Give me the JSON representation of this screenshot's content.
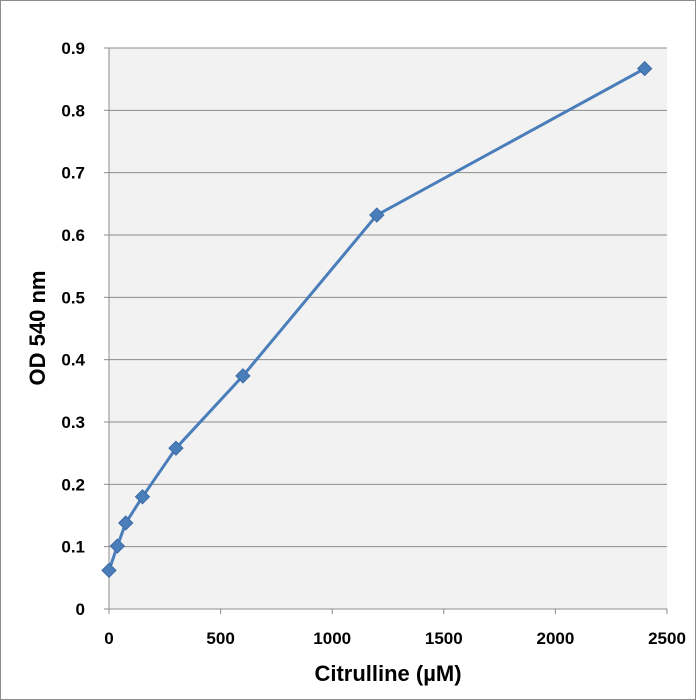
{
  "chart_data": {
    "type": "line",
    "title": "",
    "xlabel": "Citrulline (µM)",
    "ylabel": "OD 540 nm",
    "xlim": [
      0,
      2500
    ],
    "ylim": [
      0,
      0.9
    ],
    "x_ticks": [
      "0",
      "500",
      "1000",
      "1500",
      "2000",
      "2500"
    ],
    "y_ticks": [
      "0",
      "0.1",
      "0.2",
      "0.3",
      "0.4",
      "0.5",
      "0.6",
      "0.7",
      "0.8",
      "0.9"
    ],
    "grid": "horizontal",
    "legend": "none",
    "series": [
      {
        "marker": "diamond",
        "color": "#4a7ebb",
        "x": [
          0,
          37.5,
          75,
          150,
          300,
          600,
          1200,
          2400
        ],
        "y": [
          0.062,
          0.101,
          0.138,
          0.18,
          0.258,
          0.374,
          0.632,
          0.867
        ]
      }
    ]
  },
  "colors": {
    "plot_background": "#f2f2f2",
    "gridline": "#8c8c8c",
    "series": "#4a7ebb",
    "frame": "#8c8c8c"
  }
}
